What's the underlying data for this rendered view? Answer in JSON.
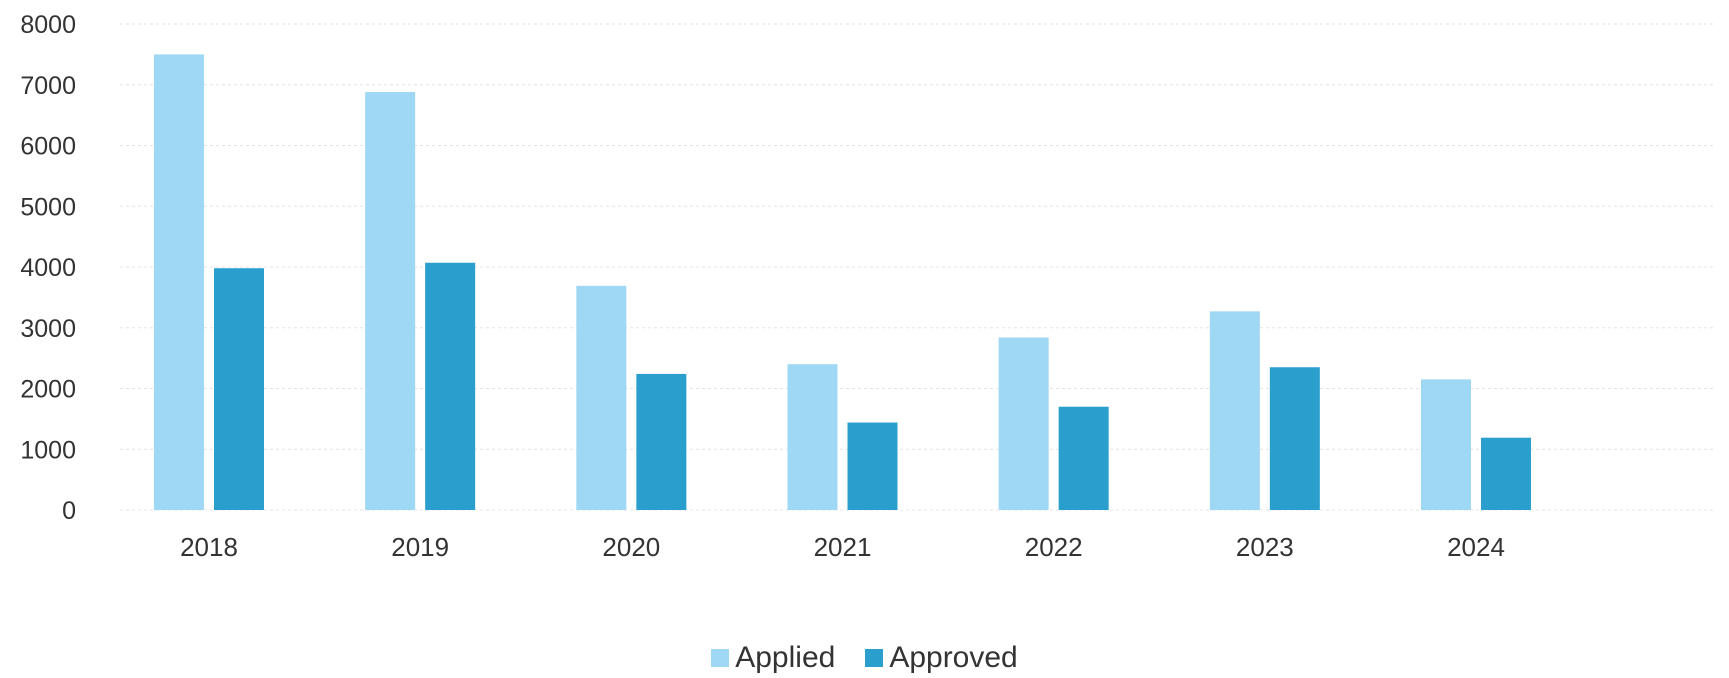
{
  "chart_data": {
    "type": "bar",
    "title": "",
    "xlabel": "",
    "ylabel": "",
    "categories": [
      "2018",
      "2019",
      "2020",
      "2021",
      "2022",
      "2023",
      "2024"
    ],
    "series": [
      {
        "name": "Applied",
        "color": "#9fd8f4",
        "values": [
          7500,
          6880,
          3690,
          2400,
          2840,
          3270,
          2150
        ]
      },
      {
        "name": "Approved",
        "color": "#2a9fcd",
        "values": [
          3980,
          4070,
          2240,
          1440,
          1700,
          2350,
          1190
        ]
      }
    ],
    "ylim": [
      0,
      8000
    ],
    "yticks": [
      "0",
      "1000",
      "2000",
      "3000",
      "4000",
      "5000",
      "6000",
      "7000",
      "8000"
    ],
    "grid": true,
    "legend_position": "bottom-center"
  }
}
